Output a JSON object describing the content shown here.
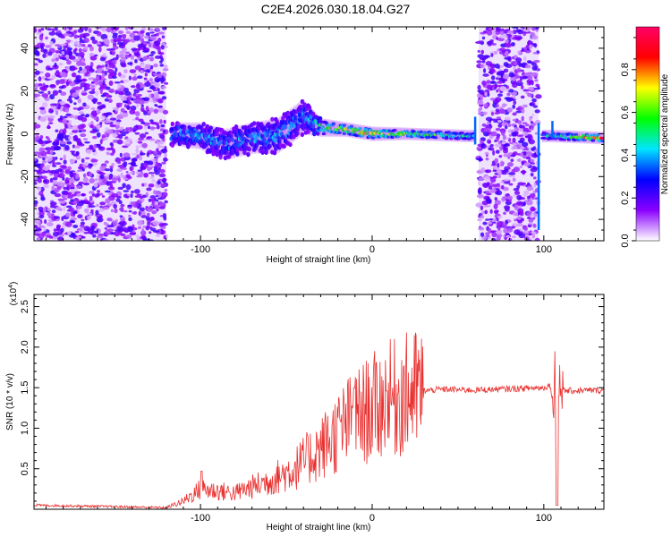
{
  "title": "C2E4.2026.030.18.04.G27",
  "chart_data": [
    {
      "type": "heatmap",
      "name": "spectrogram",
      "xlabel": "Height of straight line (km)",
      "ylabel": "Frequency (Hz)",
      "xlim": [
        -197,
        135
      ],
      "ylim": [
        -50,
        50
      ],
      "xticks": [
        -100,
        0,
        100
      ],
      "yticks": [
        -40,
        -20,
        0,
        20,
        40
      ],
      "colorbar": {
        "label": "Normalized spectral amplitude",
        "range": [
          0,
          1
        ],
        "ticks": [
          "0.0",
          "0.2",
          "0.4",
          "0.6",
          "0.8"
        ],
        "colors": [
          "#ffffff",
          "#8a00ff",
          "#0000ff",
          "#00e5ff",
          "#00ff00",
          "#ffff00",
          "#ff0000",
          "#ff0066"
        ]
      },
      "noise_regions": [
        {
          "x": [
            -197,
            -120
          ],
          "y": [
            -50,
            50
          ],
          "amplitude": 0.2
        },
        {
          "x": [
            62,
            97
          ],
          "y": [
            -50,
            50
          ],
          "amplitude": 0.2
        }
      ],
      "ridge": [
        {
          "x": -117,
          "f": 0,
          "halfwidth": 4,
          "amplitude": 0.4
        },
        {
          "x": -100,
          "f": -1,
          "halfwidth": 5,
          "amplitude": 0.45
        },
        {
          "x": -85,
          "f": -5,
          "halfwidth": 6,
          "amplitude": 0.4
        },
        {
          "x": -70,
          "f": -2,
          "halfwidth": 6,
          "amplitude": 0.45
        },
        {
          "x": -55,
          "f": -1,
          "halfwidth": 7,
          "amplitude": 0.45
        },
        {
          "x": -40,
          "f": 8,
          "halfwidth": 7,
          "amplitude": 0.4
        },
        {
          "x": -30,
          "f": 3,
          "halfwidth": 3,
          "amplitude": 0.6
        },
        {
          "x": -15,
          "f": 2,
          "halfwidth": 2,
          "amplitude": 0.8
        },
        {
          "x": 0,
          "f": 0,
          "halfwidth": 2,
          "amplitude": 0.85
        },
        {
          "x": 20,
          "f": 0,
          "halfwidth": 1.5,
          "amplitude": 0.7
        },
        {
          "x": 55,
          "f": -1,
          "halfwidth": 1.5,
          "amplitude": 0.5
        },
        {
          "x": 105,
          "f": -1,
          "halfwidth": 1.5,
          "amplitude": 0.5
        },
        {
          "x": 135,
          "f": -2,
          "halfwidth": 1.5,
          "amplitude": 0.98
        }
      ]
    },
    {
      "type": "line",
      "name": "snr",
      "xlabel": "Height of straight line (km)",
      "ylabel": "SNR (10 * v/v)",
      "yscale_label": "(x10",
      "yscale_exponent": "4",
      "yscale_suffix": ")",
      "xlim": [
        -197,
        135
      ],
      "ylim": [
        0,
        2.65
      ],
      "xticks": [
        -100,
        0,
        100
      ],
      "yticks": [
        0.5,
        1.0,
        1.5,
        2.0,
        2.5
      ],
      "ytick_labels": [
        "0.5",
        "1.0",
        "1.5",
        "2.0",
        "2.5"
      ],
      "color": "#e8302f",
      "envelope": [
        {
          "x": -197,
          "y": 0.05
        },
        {
          "x": -120,
          "y": 0.02
        },
        {
          "x": -110,
          "y": 0.1
        },
        {
          "x": -100,
          "y": 0.25
        },
        {
          "x": -80,
          "y": 0.2
        },
        {
          "x": -60,
          "y": 0.35
        },
        {
          "x": -45,
          "y": 0.5
        },
        {
          "x": -30,
          "y": 0.75
        },
        {
          "x": -15,
          "y": 1.05
        },
        {
          "x": 0,
          "y": 1.25
        },
        {
          "x": 10,
          "y": 1.35
        },
        {
          "x": 25,
          "y": 1.45
        },
        {
          "x": 40,
          "y": 1.48
        },
        {
          "x": 60,
          "y": 1.47
        },
        {
          "x": 100,
          "y": 1.5
        },
        {
          "x": 106,
          "y": 1.55
        },
        {
          "x": 111,
          "y": 1.46
        },
        {
          "x": 135,
          "y": 1.47
        }
      ]
    }
  ]
}
